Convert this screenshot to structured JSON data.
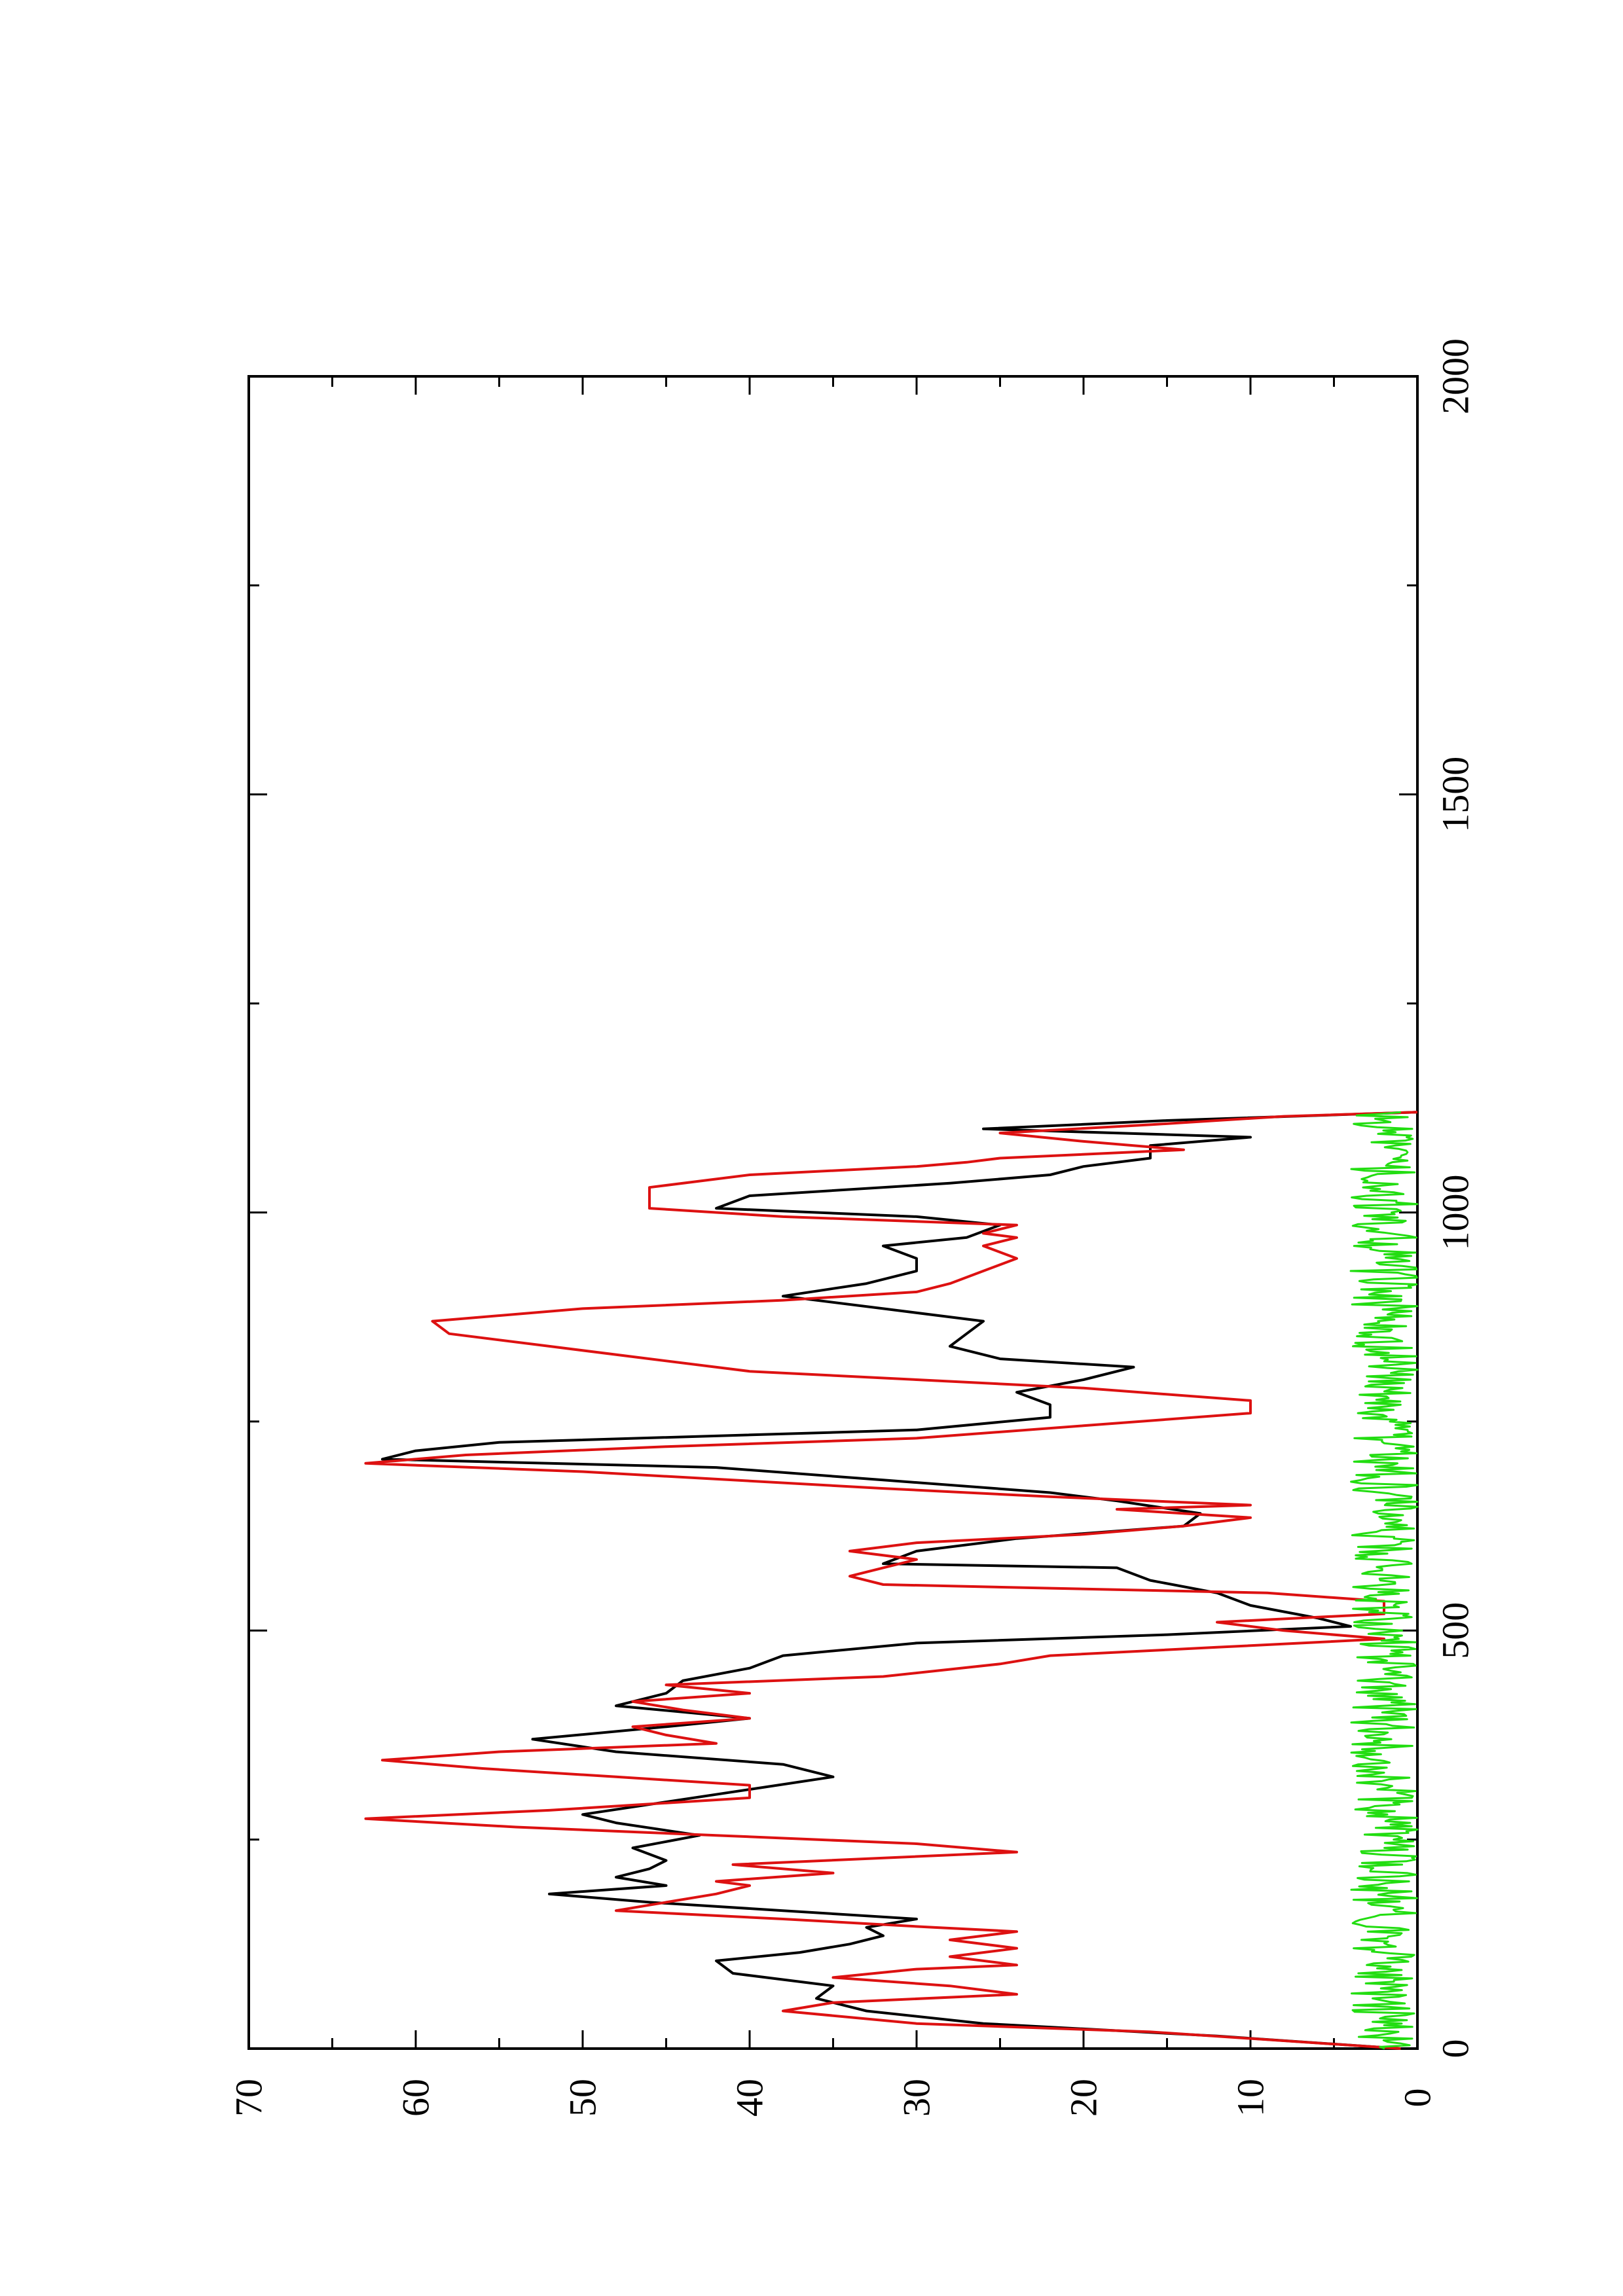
{
  "chart_data": {
    "type": "line",
    "orientation": "rotated 90 degrees counter-clockwise (landscape plot on portrait page)",
    "xlim": [
      0,
      2000
    ],
    "ylim": [
      0,
      70
    ],
    "x_ticks": [
      0,
      500,
      1000,
      1500,
      2000
    ],
    "y_ticks": [
      0,
      10,
      20,
      30,
      40,
      50,
      60,
      70
    ],
    "x_minor_step": 250,
    "y_minor_step": 5,
    "grid": false,
    "legend": "none",
    "series": [
      {
        "color": "#000000",
        "x": [
          0,
          15,
          30,
          45,
          60,
          75,
          90,
          105,
          115,
          125,
          135,
          145,
          155,
          165,
          175,
          185,
          195,
          205,
          215,
          225,
          240,
          255,
          270,
          280,
          295,
          310,
          325,
          340,
          355,
          370,
          385,
          395,
          410,
          425,
          440,
          455,
          470,
          485,
          495,
          505,
          515,
          530,
          545,
          560,
          575,
          580,
          595,
          610,
          625,
          640,
          655,
          665,
          680,
          695,
          705,
          715,
          725,
          740,
          755,
          770,
          785,
          800,
          815,
          825,
          840,
          855,
          870,
          885,
          900,
          915,
          930,
          945,
          960,
          970,
          985,
          995,
          1005,
          1020,
          1035,
          1045,
          1055,
          1065,
          1080,
          1090,
          1100,
          1110,
          1120
        ],
        "y": [
          1,
          12,
          26,
          33,
          36,
          35,
          41,
          42,
          37,
          34,
          32,
          33,
          30,
          38,
          46,
          52,
          45,
          48,
          46,
          45,
          47,
          43,
          48,
          50,
          45,
          40,
          35,
          38,
          48,
          53,
          45,
          40,
          48,
          45,
          44,
          40,
          38,
          30,
          15,
          4,
          6,
          10,
          12,
          16,
          18,
          32,
          30,
          24,
          14,
          13,
          18,
          22,
          32,
          42,
          62,
          60,
          55,
          30,
          22,
          22,
          24,
          20,
          17,
          25,
          28,
          27,
          26,
          32,
          38,
          33,
          30,
          30,
          32,
          27,
          25,
          30,
          42,
          40,
          28,
          22,
          20,
          16,
          16,
          10,
          26,
          15,
          0
        ]
      },
      {
        "color": "#dd1111",
        "x": [
          0,
          20,
          30,
          45,
          55,
          65,
          75,
          85,
          95,
          100,
          110,
          120,
          130,
          140,
          145,
          155,
          165,
          175,
          185,
          195,
          200,
          210,
          220,
          235,
          245,
          255,
          265,
          275,
          285,
          300,
          315,
          325,
          335,
          345,
          355,
          365,
          375,
          385,
          395,
          405,
          415,
          425,
          435,
          445,
          460,
          470,
          480,
          490,
          500,
          510,
          520,
          535,
          545,
          555,
          565,
          575,
          585,
          595,
          605,
          615,
          625,
          635,
          645,
          650,
          660,
          670,
          690,
          700,
          710,
          720,
          730,
          745,
          760,
          775,
          790,
          800,
          810,
          825,
          840,
          855,
          870,
          885,
          895,
          905,
          915,
          930,
          945,
          960,
          970,
          975,
          985,
          995,
          1005,
          1015,
          1030,
          1045,
          1055,
          1060,
          1065,
          1075,
          1085,
          1095,
          1105,
          1115,
          1120
        ],
        "y": [
          1,
          16,
          30,
          38,
          35,
          24,
          28,
          35,
          30,
          24,
          28,
          24,
          28,
          24,
          29,
          38,
          48,
          45,
          42,
          40,
          42,
          35,
          41,
          24,
          30,
          42,
          54,
          63,
          52,
          40,
          40,
          48,
          56,
          62,
          55,
          42,
          45,
          47,
          40,
          44,
          47,
          40,
          45,
          32,
          25,
          22,
          12,
          2,
          8,
          12,
          2,
          2,
          9,
          32,
          34,
          32,
          30,
          34,
          30,
          20,
          14,
          10,
          18,
          10,
          22,
          32,
          50,
          63,
          57,
          45,
          30,
          20,
          10,
          10,
          20,
          30,
          40,
          46,
          52,
          58,
          59,
          50,
          38,
          30,
          28,
          26,
          24,
          26,
          24,
          26,
          24,
          38,
          46,
          46,
          46,
          40,
          30,
          27,
          25,
          14,
          20,
          25,
          16,
          8,
          0
        ]
      },
      {
        "color": "#22dd11",
        "x": [
          0,
          1120
        ],
        "y_range": [
          0,
          4
        ],
        "noise": true
      }
    ]
  }
}
